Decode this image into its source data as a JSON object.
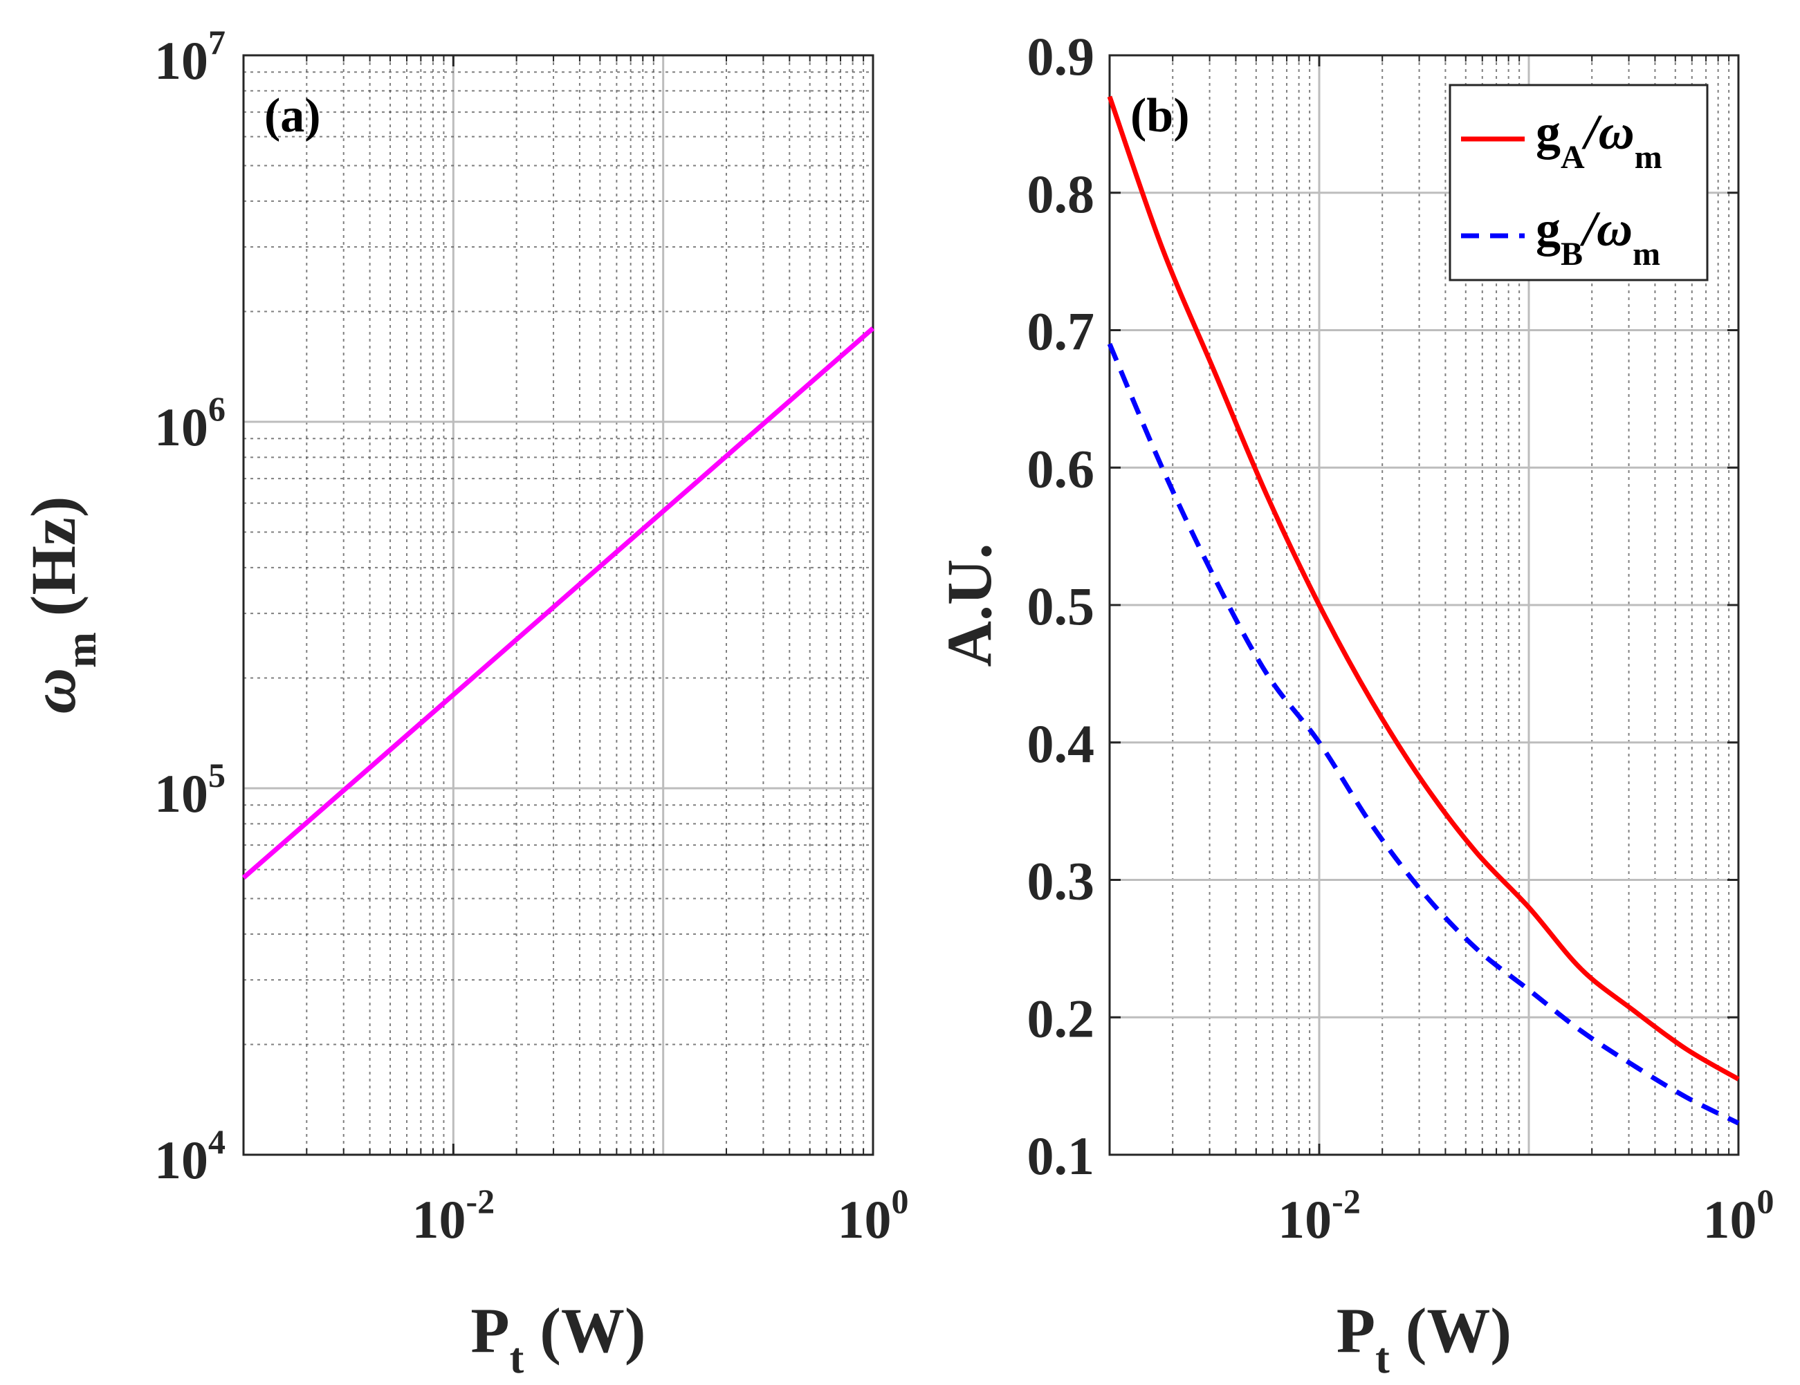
{
  "chart_data": [
    {
      "type": "line",
      "panel_label": "(a)",
      "xscale": "log",
      "yscale": "log",
      "xlim": [
        0.001,
        1
      ],
      "ylim": [
        10000,
        10000000
      ],
      "xlabel": {
        "main": "P",
        "sub": "t",
        "unit": " (W)"
      },
      "ylabel": {
        "main": "ω",
        "sub": "m",
        "unit": " (Hz)"
      },
      "xticks": [
        {
          "base": "10",
          "exp": "-2",
          "value": 0.01
        },
        {
          "base": "10",
          "exp": "0",
          "value": 1
        }
      ],
      "yticks": [
        {
          "base": "10",
          "exp": "4",
          "value": 10000
        },
        {
          "base": "10",
          "exp": "5",
          "value": 100000
        },
        {
          "base": "10",
          "exp": "6",
          "value": 1000000
        },
        {
          "base": "10",
          "exp": "7",
          "value": 10000000
        }
      ],
      "grid": true,
      "series": [
        {
          "name": "ω_m",
          "color": "#ff00ff",
          "style": "solid",
          "x": [
            0.001,
            0.01,
            0.1,
            1
          ],
          "y": [
            57000,
            180000,
            570000,
            1800000
          ]
        }
      ]
    },
    {
      "type": "line",
      "panel_label": "(b)",
      "xscale": "log",
      "yscale": "linear",
      "xlim": [
        0.001,
        1
      ],
      "ylim": [
        0.1,
        0.9
      ],
      "xlabel": {
        "main": "P",
        "sub": "t",
        "unit": " (W)"
      },
      "ylabel": {
        "main": "A.U."
      },
      "xticks": [
        {
          "base": "10",
          "exp": "-2",
          "value": 0.01
        },
        {
          "base": "10",
          "exp": "0",
          "value": 1
        }
      ],
      "yticks": [
        "0.1",
        "0.2",
        "0.3",
        "0.4",
        "0.5",
        "0.6",
        "0.7",
        "0.8",
        "0.9"
      ],
      "grid": true,
      "legend_position": "top-right",
      "series": [
        {
          "name": "g_A/ω_m",
          "label_main": "g",
          "label_sub": "A",
          "label_rest": "/ω",
          "label_sub2": "m",
          "color": "#ff0000",
          "style": "solid",
          "x": [
            0.001,
            0.00178,
            0.00316,
            0.00562,
            0.01,
            0.0178,
            0.0316,
            0.0562,
            0.1,
            0.178,
            0.316,
            0.562,
            1
          ],
          "y": [
            0.87,
            0.76,
            0.67,
            0.58,
            0.5,
            0.43,
            0.37,
            0.32,
            0.28,
            0.235,
            0.205,
            0.177,
            0.155
          ]
        },
        {
          "name": "g_B/ω_m",
          "label_main": "g",
          "label_sub": "B",
          "label_rest": "/ω",
          "label_sub2": "m",
          "color": "#0000ff",
          "style": "dashed",
          "x": [
            0.001,
            0.00178,
            0.00316,
            0.00562,
            0.01,
            0.0178,
            0.0316,
            0.0562,
            0.1,
            0.178,
            0.316,
            0.562,
            1
          ],
          "y": [
            0.69,
            0.6,
            0.52,
            0.45,
            0.4,
            0.34,
            0.29,
            0.25,
            0.22,
            0.19,
            0.165,
            0.142,
            0.123
          ]
        }
      ]
    }
  ]
}
